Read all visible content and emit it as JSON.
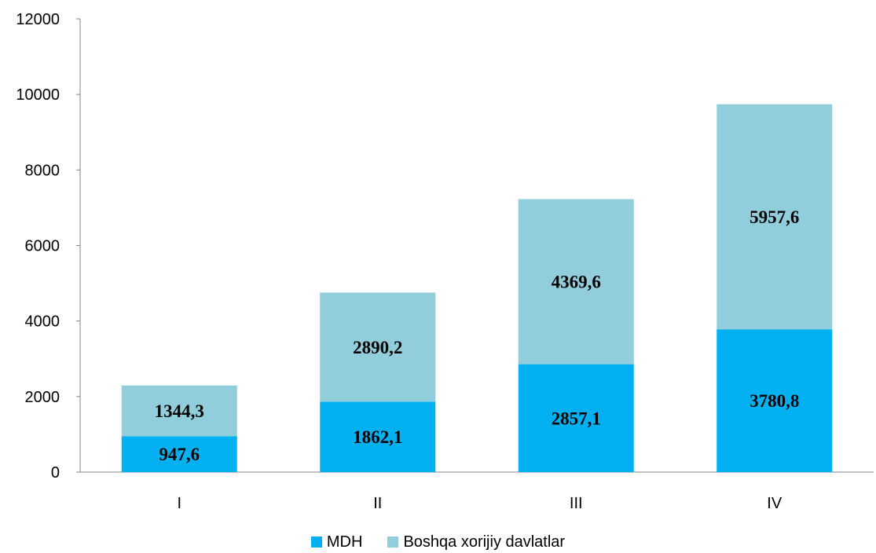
{
  "chart_data": {
    "type": "bar",
    "stacked": true,
    "categories": [
      "I",
      "II",
      "III",
      "IV"
    ],
    "series": [
      {
        "name": "MDH",
        "color": "#00B0F0",
        "values": [
          947.6,
          1862.1,
          2857.1,
          3780.8
        ],
        "labels": [
          "947,6",
          "1862,1",
          "2857,1",
          "3780,8"
        ]
      },
      {
        "name": "Boshqa xorijiy davlatlar",
        "color": "#92CDDC",
        "values": [
          1344.3,
          2890.2,
          4369.6,
          5957.6
        ],
        "labels": [
          "1344,3",
          "2890,2",
          "4369,6",
          "5957,6"
        ]
      }
    ],
    "ylim": [
      0,
      12000
    ],
    "yticks": [
      "0",
      "2000",
      "4000",
      "6000",
      "8000",
      "10000",
      "12000"
    ],
    "grid": false,
    "legend_position": "bottom"
  }
}
